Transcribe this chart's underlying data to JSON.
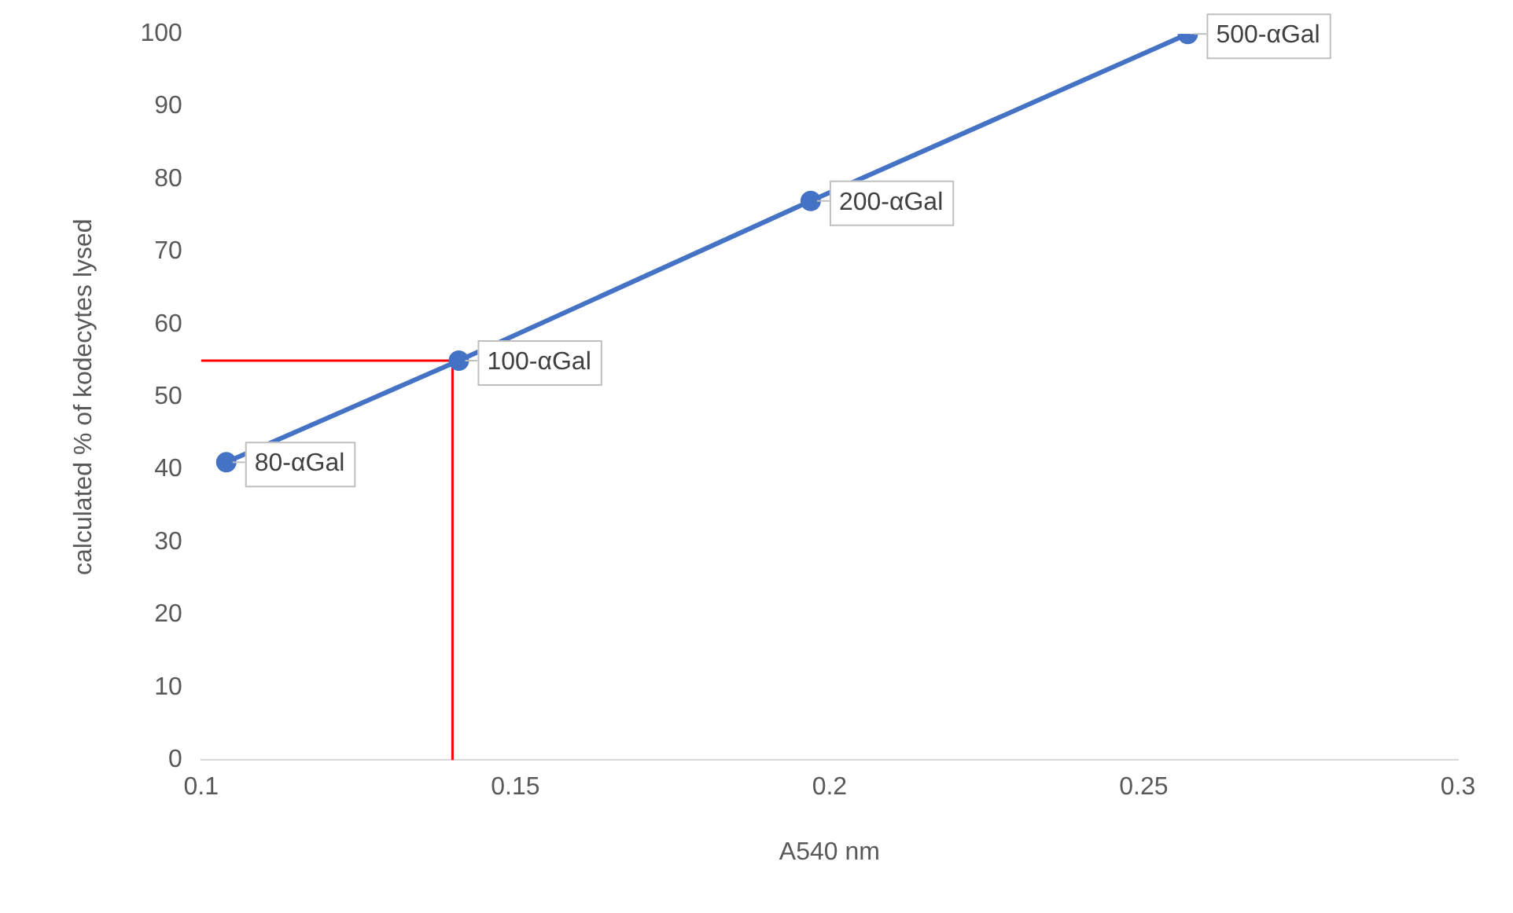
{
  "chart_data": {
    "type": "line",
    "xlabel": "A540 nm",
    "ylabel": "calculated % of kodecytes lysed",
    "xlim": [
      0.1,
      0.3
    ],
    "xticks": [
      0.1,
      0.15,
      0.2,
      0.25,
      0.3
    ],
    "ylim": [
      0,
      100
    ],
    "yticks": [
      0,
      10,
      20,
      30,
      40,
      50,
      60,
      70,
      80,
      90,
      100
    ],
    "grid": false,
    "legend": false,
    "marker": "circle",
    "line_style": "solid",
    "series": [
      {
        "color": "#4472c4",
        "x": [
          0.104,
          0.141,
          0.197,
          0.257
        ],
        "values": [
          41,
          55,
          77,
          100
        ]
      },
      {
        "color": "#ff0000",
        "x": [
          0.1,
          0.14,
          0.14
        ],
        "values": [
          55,
          55,
          0
        ],
        "marker": "none"
      }
    ],
    "annotations": [
      {
        "text": "80-αGal",
        "x": 0.104,
        "y": 41
      },
      {
        "text": "100-αGal",
        "x": 0.141,
        "y": 55
      },
      {
        "text": "200-αGal",
        "x": 0.197,
        "y": 77
      },
      {
        "text": "500-αGal",
        "x": 0.257,
        "y": 100
      }
    ]
  }
}
